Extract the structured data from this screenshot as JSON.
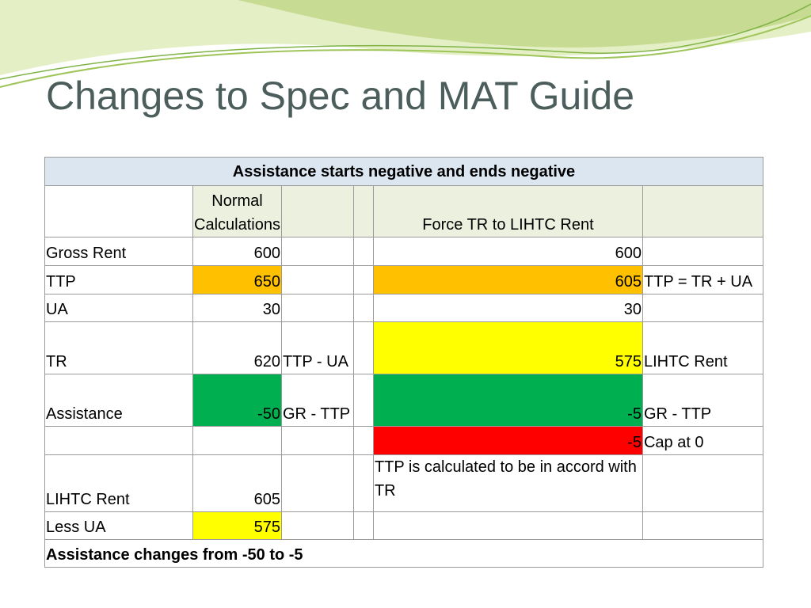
{
  "header": {
    "title": "Changes to Spec and MAT Guide"
  },
  "table": {
    "caption": "Assistance starts negative and ends negative",
    "columns": [
      null,
      "Normal Calculations",
      null,
      null,
      "Force TR to LIHTC Rent",
      null
    ],
    "rows": [
      [
        "Gross Rent",
        600,
        null,
        null,
        600,
        null
      ],
      [
        "TTP",
        650,
        null,
        null,
        605,
        "TTP = TR + UA"
      ],
      [
        "UA",
        30,
        null,
        null,
        30,
        null
      ],
      [
        "TR",
        620,
        "TTP - UA",
        null,
        575,
        "LIHTC Rent"
      ],
      [
        "Assistance",
        -50,
        "GR - TTP",
        null,
        -5,
        "GR - TTP"
      ],
      [
        null,
        null,
        null,
        null,
        -5,
        "Cap at 0"
      ],
      [
        "LIHTC Rent",
        605,
        null,
        null,
        "TTP is calculated to be in accord with TR",
        null
      ],
      [
        "Less UA",
        575,
        null,
        null,
        null,
        null
      ]
    ],
    "footer": "Assistance changes from -50 to -5"
  }
}
